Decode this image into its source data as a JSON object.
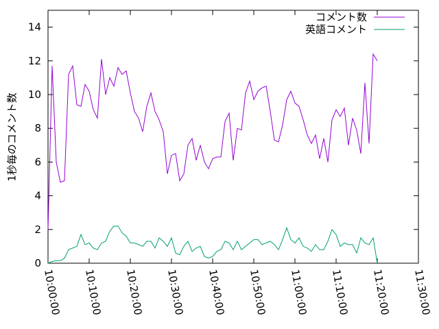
{
  "chart_data": {
    "type": "line",
    "y_label": "1秒毎のコメント数",
    "xlim": [
      "10:00:00",
      "11:30:00"
    ],
    "xticks": [
      "10:00:00",
      "10:10:00",
      "10:20:00",
      "10:30:00",
      "10:40:00",
      "10:50:00",
      "11:00:00",
      "11:10:00",
      "11:20:00",
      "11:30:00"
    ],
    "ylim": [
      0,
      15
    ],
    "yticks": [
      0,
      2,
      4,
      6,
      8,
      10,
      12,
      14
    ],
    "legend": "top-right",
    "x": [
      "10:00:00",
      "10:01:00",
      "10:02:00",
      "10:03:00",
      "10:04:00",
      "10:05:00",
      "10:06:00",
      "10:07:00",
      "10:08:00",
      "10:09:00",
      "10:10:00",
      "10:11:00",
      "10:12:00",
      "10:13:00",
      "10:14:00",
      "10:15:00",
      "10:16:00",
      "10:17:00",
      "10:18:00",
      "10:19:00",
      "10:20:00",
      "10:21:00",
      "10:22:00",
      "10:23:00",
      "10:24:00",
      "10:25:00",
      "10:26:00",
      "10:27:00",
      "10:28:00",
      "10:29:00",
      "10:30:00",
      "10:31:00",
      "10:32:00",
      "10:33:00",
      "10:34:00",
      "10:35:00",
      "10:36:00",
      "10:37:00",
      "10:38:00",
      "10:39:00",
      "10:40:00",
      "10:41:00",
      "10:42:00",
      "10:43:00",
      "10:44:00",
      "10:45:00",
      "10:46:00",
      "10:47:00",
      "10:48:00",
      "10:49:00",
      "10:50:00",
      "10:51:00",
      "10:52:00",
      "10:53:00",
      "10:54:00",
      "10:55:00",
      "10:56:00",
      "10:57:00",
      "10:58:00",
      "10:59:00",
      "11:00:00",
      "11:01:00",
      "11:02:00",
      "11:03:00",
      "11:04:00",
      "11:05:00",
      "11:06:00",
      "11:07:00",
      "11:08:00",
      "11:09:00",
      "11:10:00",
      "11:11:00",
      "11:12:00",
      "11:13:00",
      "11:14:00",
      "11:15:00",
      "11:16:00",
      "11:17:00",
      "11:18:00",
      "11:19:00",
      "11:20:00"
    ],
    "series": [
      {
        "name": "コメント数",
        "color": "#9400d3",
        "values": [
          2.0,
          11.7,
          6.0,
          4.8,
          4.9,
          11.2,
          11.7,
          9.4,
          9.3,
          10.6,
          10.2,
          9.1,
          8.6,
          12.1,
          10.0,
          11.0,
          10.5,
          11.6,
          11.2,
          11.4,
          10.1,
          9.0,
          8.6,
          7.8,
          9.3,
          10.1,
          9.0,
          8.5,
          7.8,
          5.3,
          6.4,
          6.5,
          4.9,
          5.3,
          7.0,
          7.4,
          6.1,
          7.0,
          6.0,
          5.6,
          6.2,
          6.3,
          6.3,
          8.4,
          8.9,
          6.1,
          8.0,
          7.9,
          10.1,
          10.8,
          9.7,
          10.2,
          10.4,
          10.5,
          9.0,
          7.3,
          7.2,
          8.2,
          9.7,
          10.2,
          9.5,
          9.3,
          8.5,
          7.6,
          7.1,
          7.6,
          6.2,
          7.4,
          6.0,
          8.5,
          9.1,
          8.7,
          9.2,
          7.0,
          8.6,
          7.9,
          6.5,
          10.7,
          7.1,
          12.4,
          12.0
        ]
      },
      {
        "name": "英語コメント",
        "color": "#009e73",
        "values": [
          0,
          0.1,
          0.15,
          0.15,
          0.3,
          0.8,
          0.9,
          1.0,
          1.7,
          1.1,
          1.2,
          0.9,
          0.8,
          1.2,
          1.3,
          1.9,
          2.2,
          2.2,
          1.8,
          1.6,
          1.2,
          1.2,
          1.1,
          1.0,
          1.3,
          1.3,
          0.9,
          1.5,
          1.3,
          1.0,
          1.5,
          0.6,
          0.5,
          1.0,
          1.3,
          0.7,
          0.9,
          1.0,
          0.4,
          0.3,
          0.4,
          0.7,
          0.8,
          1.3,
          1.2,
          0.8,
          1.3,
          0.8,
          1.0,
          1.2,
          1.4,
          1.4,
          1.1,
          1.2,
          1.3,
          1.1,
          0.8,
          1.4,
          2.1,
          1.4,
          1.2,
          1.5,
          1.0,
          0.9,
          0.7,
          1.1,
          0.8,
          0.8,
          1.3,
          2.0,
          1.7,
          1.0,
          1.2,
          1.1,
          1.1,
          0.6,
          1.5,
          1.2,
          1.1,
          1.5,
          0
        ]
      }
    ]
  }
}
